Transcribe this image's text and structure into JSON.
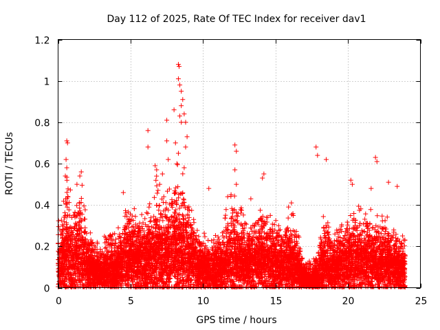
{
  "chart_data": {
    "type": "scatter",
    "title": "Day 112 of 2025, Rate Of TEC Index for receiver dav1",
    "xlabel": "GPS time / hours",
    "ylabel": "ROTI / TECUs",
    "xlim": [
      0,
      25
    ],
    "ylim": [
      0,
      1.2
    ],
    "grid": true,
    "marker": "plus",
    "color": "#ff0000",
    "x_ticks": [
      {
        "value": 0,
        "label": "0"
      },
      {
        "value": 5,
        "label": "5"
      },
      {
        "value": 10,
        "label": "10"
      },
      {
        "value": 15,
        "label": "15"
      },
      {
        "value": 20,
        "label": "20"
      },
      {
        "value": 25,
        "label": "25"
      }
    ],
    "y_ticks": [
      {
        "value": 0,
        "label": "0"
      },
      {
        "value": 0.2,
        "label": "0.2"
      },
      {
        "value": 0.4,
        "label": "0.4"
      },
      {
        "value": 0.6,
        "label": "0.6"
      },
      {
        "value": 0.8,
        "label": "0.8"
      },
      {
        "value": 1.0,
        "label": "1"
      },
      {
        "value": 1.2,
        "label": "1.2"
      }
    ],
    "envelope": {
      "x": [
        0.0,
        0.3,
        0.6,
        0.8,
        1.0,
        1.3,
        1.6,
        2.0,
        2.5,
        3.0,
        3.3,
        3.6,
        4.0,
        4.5,
        5.0,
        5.5,
        6.0,
        6.5,
        6.8,
        7.2,
        7.6,
        8.0,
        8.3,
        8.6,
        9.0,
        9.5,
        10.0,
        10.5,
        11.0,
        11.5,
        12.0,
        12.3,
        12.6,
        13.0,
        13.5,
        14.0,
        14.5,
        15.0,
        15.5,
        16.0,
        16.3,
        16.6,
        17.0,
        17.5,
        17.9,
        18.3,
        18.7,
        19.0,
        19.5,
        20.0,
        20.5,
        21.0,
        21.5,
        22.0,
        22.5,
        23.0,
        23.5,
        23.9
      ],
      "top": [
        0.3,
        0.38,
        0.55,
        0.48,
        0.42,
        0.45,
        0.52,
        0.3,
        0.24,
        0.2,
        0.26,
        0.3,
        0.25,
        0.35,
        0.4,
        0.36,
        0.34,
        0.42,
        0.52,
        0.44,
        0.46,
        0.55,
        0.62,
        0.56,
        0.44,
        0.3,
        0.26,
        0.22,
        0.26,
        0.34,
        0.46,
        0.42,
        0.38,
        0.33,
        0.36,
        0.4,
        0.34,
        0.32,
        0.3,
        0.36,
        0.34,
        0.24,
        0.14,
        0.12,
        0.18,
        0.35,
        0.3,
        0.26,
        0.28,
        0.36,
        0.4,
        0.36,
        0.38,
        0.34,
        0.36,
        0.3,
        0.28,
        0.24
      ],
      "base": [
        0.1,
        0.13,
        0.16,
        0.15,
        0.13,
        0.14,
        0.15,
        0.1,
        0.08,
        0.06,
        0.08,
        0.09,
        0.08,
        0.12,
        0.14,
        0.13,
        0.12,
        0.14,
        0.16,
        0.14,
        0.15,
        0.17,
        0.18,
        0.17,
        0.14,
        0.1,
        0.09,
        0.08,
        0.09,
        0.11,
        0.14,
        0.13,
        0.12,
        0.11,
        0.12,
        0.13,
        0.12,
        0.11,
        0.1,
        0.12,
        0.11,
        0.08,
        0.04,
        0.03,
        0.05,
        0.12,
        0.11,
        0.09,
        0.1,
        0.12,
        0.14,
        0.12,
        0.13,
        0.12,
        0.13,
        0.1,
        0.09,
        0.08
      ]
    },
    "outliers": [
      {
        "x": 0.6,
        "y": 0.71
      },
      {
        "x": 0.65,
        "y": 0.7
      },
      {
        "x": 0.55,
        "y": 0.62
      },
      {
        "x": 0.6,
        "y": 0.58
      },
      {
        "x": 0.5,
        "y": 0.54
      },
      {
        "x": 1.6,
        "y": 0.56
      },
      {
        "x": 1.5,
        "y": 0.54
      },
      {
        "x": 1.3,
        "y": 0.5
      },
      {
        "x": 4.5,
        "y": 0.46
      },
      {
        "x": 6.2,
        "y": 0.76
      },
      {
        "x": 6.2,
        "y": 0.68
      },
      {
        "x": 6.7,
        "y": 0.59
      },
      {
        "x": 6.8,
        "y": 0.57
      },
      {
        "x": 7.2,
        "y": 0.55
      },
      {
        "x": 7.5,
        "y": 0.81
      },
      {
        "x": 7.5,
        "y": 0.71
      },
      {
        "x": 7.6,
        "y": 0.62
      },
      {
        "x": 8.0,
        "y": 0.86
      },
      {
        "x": 8.1,
        "y": 0.7
      },
      {
        "x": 8.3,
        "y": 1.08
      },
      {
        "x": 8.35,
        "y": 1.07
      },
      {
        "x": 8.3,
        "y": 1.01
      },
      {
        "x": 8.4,
        "y": 0.98
      },
      {
        "x": 8.5,
        "y": 0.95
      },
      {
        "x": 8.6,
        "y": 0.91
      },
      {
        "x": 8.5,
        "y": 0.88
      },
      {
        "x": 8.4,
        "y": 0.83
      },
      {
        "x": 8.5,
        "y": 0.8
      },
      {
        "x": 8.7,
        "y": 0.84
      },
      {
        "x": 8.8,
        "y": 0.8
      },
      {
        "x": 8.9,
        "y": 0.73
      },
      {
        "x": 8.8,
        "y": 0.68
      },
      {
        "x": 8.3,
        "y": 0.65
      },
      {
        "x": 8.2,
        "y": 0.6
      },
      {
        "x": 8.7,
        "y": 0.58
      },
      {
        "x": 10.4,
        "y": 0.48
      },
      {
        "x": 12.2,
        "y": 0.69
      },
      {
        "x": 12.3,
        "y": 0.66
      },
      {
        "x": 12.2,
        "y": 0.57
      },
      {
        "x": 12.3,
        "y": 0.5
      },
      {
        "x": 14.2,
        "y": 0.55
      },
      {
        "x": 14.1,
        "y": 0.53
      },
      {
        "x": 17.8,
        "y": 0.68
      },
      {
        "x": 17.9,
        "y": 0.64
      },
      {
        "x": 18.5,
        "y": 0.62
      },
      {
        "x": 20.2,
        "y": 0.52
      },
      {
        "x": 20.3,
        "y": 0.5
      },
      {
        "x": 21.9,
        "y": 0.63
      },
      {
        "x": 22.0,
        "y": 0.61
      },
      {
        "x": 21.6,
        "y": 0.48
      },
      {
        "x": 22.8,
        "y": 0.51
      },
      {
        "x": 23.4,
        "y": 0.49
      },
      {
        "x": 16.1,
        "y": 0.41
      },
      {
        "x": 15.9,
        "y": 0.39
      },
      {
        "x": 13.3,
        "y": 0.43
      },
      {
        "x": 11.7,
        "y": 0.44
      }
    ],
    "seed": 112
  }
}
